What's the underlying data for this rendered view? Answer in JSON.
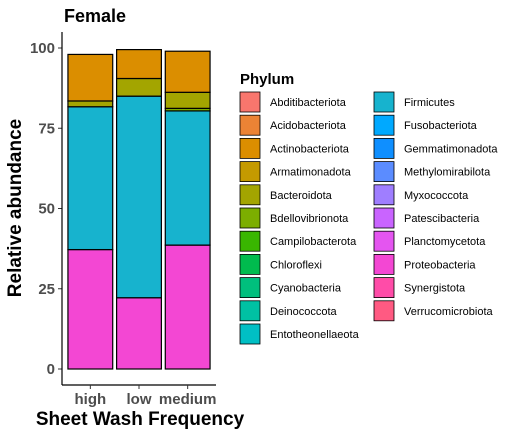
{
  "chart_data": {
    "type": "bar",
    "stacked": true,
    "title": "Female",
    "xlabel": "Sheet Wash Frequency",
    "ylabel": "Relative abundance",
    "ylim": [
      0,
      100
    ],
    "yticks": [
      0,
      25,
      50,
      75,
      100
    ],
    "categories": [
      "high",
      "low",
      "medium"
    ],
    "grid": false,
    "legend_title": "Phylum",
    "legend_position": "right",
    "series": [
      {
        "name": "Abditibacteriota",
        "color": "#F8766D",
        "values": [
          0,
          0,
          0
        ]
      },
      {
        "name": "Acidobacteriota",
        "color": "#EB8335",
        "values": [
          0,
          0,
          0
        ]
      },
      {
        "name": "Actinobacteriota",
        "color": "#DB8E00",
        "values": [
          14.5,
          9.0,
          12.8
        ]
      },
      {
        "name": "Armatimonadota",
        "color": "#C49A00",
        "values": [
          0,
          0,
          0
        ]
      },
      {
        "name": "Bacteroidota",
        "color": "#A3A500",
        "values": [
          1.8,
          5.5,
          5.0
        ]
      },
      {
        "name": "Bdellovibrionota",
        "color": "#7CAE00",
        "values": [
          0,
          0,
          0.8
        ]
      },
      {
        "name": "Campilobacterota",
        "color": "#39B600",
        "values": [
          0,
          0,
          0
        ]
      },
      {
        "name": "Chloroflexi",
        "color": "#00BB4E",
        "values": [
          0,
          0,
          0
        ]
      },
      {
        "name": "Cyanobacteria",
        "color": "#00BF7D",
        "values": [
          0,
          0,
          0
        ]
      },
      {
        "name": "Deinococcota",
        "color": "#00C1A3",
        "values": [
          0,
          0,
          0
        ]
      },
      {
        "name": "Entotheonellaeota",
        "color": "#00BFC4",
        "values": [
          0,
          0,
          0
        ]
      },
      {
        "name": "Firmicutes",
        "color": "#17B3CE",
        "values": [
          44.5,
          62.8,
          41.8
        ]
      },
      {
        "name": "Fusobacteriota",
        "color": "#00A9FF",
        "values": [
          0,
          0,
          0
        ]
      },
      {
        "name": "Gemmatimonadota",
        "color": "#0F8FFF",
        "values": [
          0,
          0,
          0
        ]
      },
      {
        "name": "Methylomirabilota",
        "color": "#5B8CFF",
        "values": [
          0,
          0,
          0
        ]
      },
      {
        "name": "Myxococcota",
        "color": "#9F7EFF",
        "values": [
          0,
          0,
          0
        ]
      },
      {
        "name": "Patescibacteria",
        "color": "#C964FF",
        "values": [
          0,
          0,
          0
        ]
      },
      {
        "name": "Planctomycetota",
        "color": "#E455F0",
        "values": [
          0,
          0,
          0
        ]
      },
      {
        "name": "Proteobacteria",
        "color": "#F347D3",
        "values": [
          37.2,
          22.2,
          38.6
        ]
      },
      {
        "name": "Synergistota",
        "color": "#FF4CA8",
        "values": [
          0,
          0,
          0
        ]
      },
      {
        "name": "Verrucomicrobiota",
        "color": "#FF5A82",
        "values": [
          0,
          0,
          0
        ]
      }
    ]
  }
}
